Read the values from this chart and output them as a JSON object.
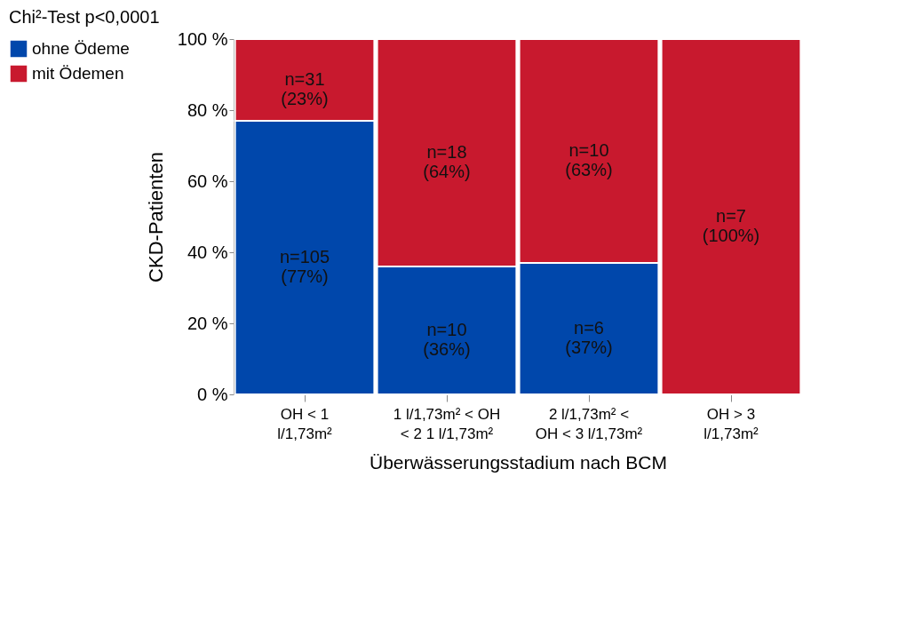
{
  "chart_data": {
    "type": "bar",
    "stacked": true,
    "xlabel": "Überwässerungsstadium nach BCM",
    "ylabel": "CKD-Patienten",
    "annotations": [
      "Chi²-Test p<0,0001"
    ],
    "categories": [
      "OH < 1 l/1,73m²",
      "1 l/1,73m² < OH < 2 1 l/1,73m²",
      "2 l/1,73m² < OH < 3 l/1,73m²",
      "OH > 3 l/1,73m²"
    ],
    "series": [
      {
        "name": "ohne Ödeme",
        "color": "#0047ab",
        "values": [
          77,
          36,
          37,
          0
        ],
        "value_labels": [
          "n=105\n(77%)",
          "n=10\n(36%)",
          "n=6\n(37%)",
          null
        ]
      },
      {
        "name": "mit Ödemen",
        "color": "#c8192e",
        "values": [
          23,
          64,
          63,
          100
        ],
        "value_labels": [
          "n=31\n(23%)",
          "n=18\n(64%)",
          "n=10\n(63%)",
          "n=7\n(100%)"
        ]
      }
    ],
    "ylim": [
      0,
      100
    ],
    "yticks": [
      {
        "value": 0,
        "label": "0 %"
      },
      {
        "value": 20,
        "label": "20 %"
      },
      {
        "value": 40,
        "label": "40 %"
      },
      {
        "value": 60,
        "label": "60 %"
      },
      {
        "value": 80,
        "label": "80 %"
      },
      {
        "value": 100,
        "label": "100 %"
      }
    ],
    "legend": "left",
    "grid": false
  }
}
